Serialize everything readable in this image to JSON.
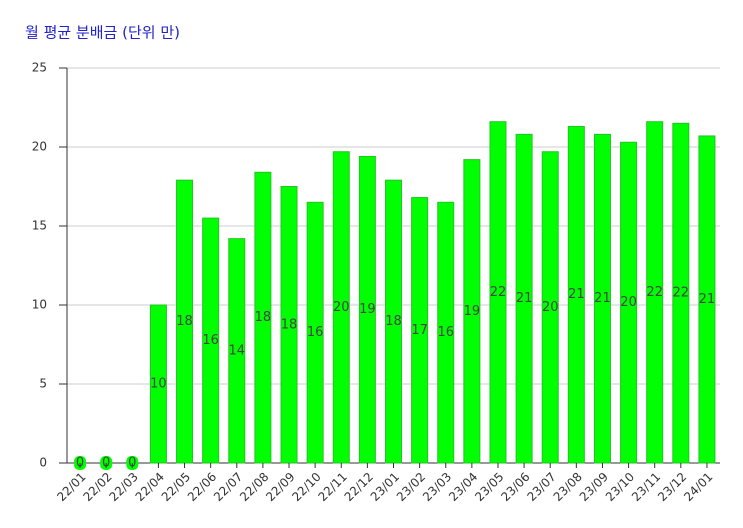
{
  "chart_data": {
    "type": "bar",
    "title": "월 평균 분배금 (단위 만)",
    "categories": [
      "22/01",
      "22/02",
      "22/03",
      "22/04",
      "22/05",
      "22/06",
      "22/07",
      "22/08",
      "22/09",
      "22/10",
      "22/11",
      "22/12",
      "23/01",
      "23/02",
      "23/03",
      "23/04",
      "23/05",
      "23/06",
      "23/07",
      "23/08",
      "23/09",
      "23/10",
      "23/11",
      "23/12",
      "24/01"
    ],
    "values": [
      0,
      0,
      0,
      10.0,
      17.9,
      15.5,
      14.2,
      18.4,
      17.5,
      16.5,
      19.7,
      19.4,
      17.9,
      16.8,
      16.5,
      19.2,
      21.6,
      20.8,
      19.7,
      21.3,
      20.8,
      20.3,
      21.6,
      21.5,
      20.7
    ],
    "value_labels": [
      "0",
      "0",
      "0",
      "10",
      "18",
      "16",
      "14",
      "18",
      "18",
      "16",
      "20",
      "19",
      "18",
      "17",
      "16",
      "19",
      "22",
      "21",
      "20",
      "21",
      "21",
      "20",
      "22",
      "22",
      "21"
    ],
    "color": "#00ff00",
    "ylim": [
      0,
      25
    ],
    "yticks": [
      0,
      5,
      10,
      15,
      20,
      25
    ],
    "grid": true
  }
}
